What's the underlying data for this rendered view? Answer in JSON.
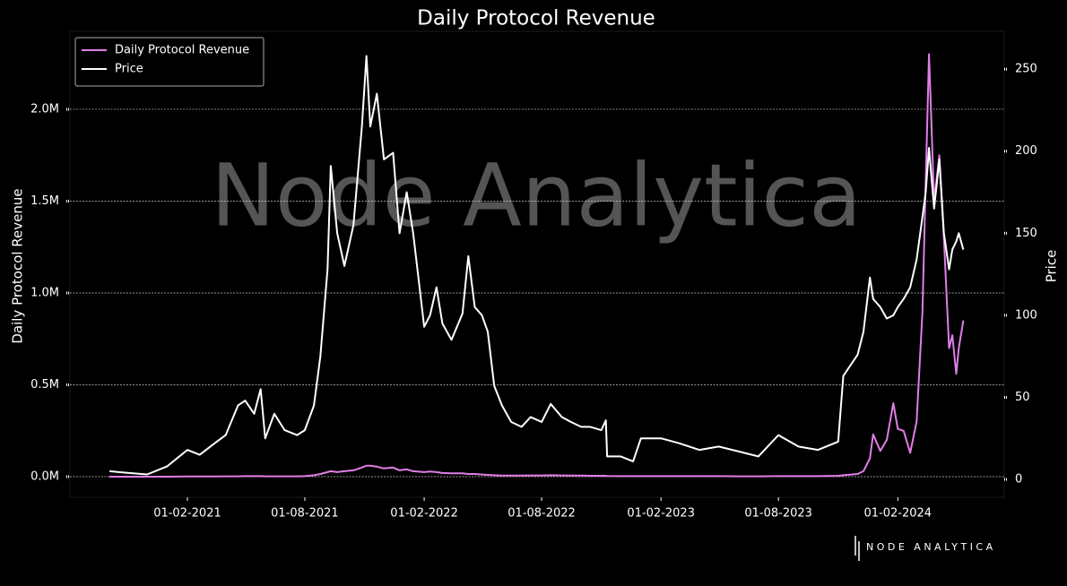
{
  "chart_data": {
    "type": "line",
    "title": "Daily Protocol Revenue",
    "ylabel": "Daily Protocol Revenue",
    "y2label": "Price",
    "watermark": "Node Analytica",
    "brand": "NODE ANALYTICA",
    "legend": "upper left",
    "grid": true,
    "xlim": [
      "2020-08-04",
      "2024-07-14"
    ],
    "xticks": [
      {
        "value": "2021-02-01",
        "label": "01-02-2021"
      },
      {
        "value": "2021-08-01",
        "label": "01-08-2021"
      },
      {
        "value": "2022-02-01",
        "label": "01-02-2022"
      },
      {
        "value": "2022-08-01",
        "label": "01-08-2022"
      },
      {
        "value": "2023-02-01",
        "label": "01-02-2023"
      },
      {
        "value": "2023-08-01",
        "label": "01-08-2023"
      },
      {
        "value": "2024-02-01",
        "label": "01-02-2024"
      }
    ],
    "ylim": [
      -112000,
      2424000
    ],
    "yticks": [
      {
        "value": 0,
        "label": "0.0M"
      },
      {
        "value": 500000,
        "label": "0.5M"
      },
      {
        "value": 1000000,
        "label": "1.0M"
      },
      {
        "value": 1500000,
        "label": "1.5M"
      },
      {
        "value": 2000000,
        "label": "2.0M"
      }
    ],
    "y2lim": [
      -10.9,
      273
    ],
    "y2ticks": [
      0,
      50,
      100,
      150,
      200,
      250
    ],
    "x": [
      "2020-10-04",
      "2020-11-01",
      "2020-12-01",
      "2021-01-01",
      "2021-02-01",
      "2021-02-20",
      "2021-03-15",
      "2021-04-01",
      "2021-04-20",
      "2021-05-01",
      "2021-05-15",
      "2021-05-25",
      "2021-06-01",
      "2021-06-15",
      "2021-07-01",
      "2021-07-20",
      "2021-08-01",
      "2021-08-15",
      "2021-08-25",
      "2021-09-05",
      "2021-09-10",
      "2021-09-20",
      "2021-10-01",
      "2021-10-15",
      "2021-10-28",
      "2021-11-04",
      "2021-11-10",
      "2021-11-20",
      "2021-12-01",
      "2021-12-15",
      "2021-12-25",
      "2022-01-05",
      "2022-01-15",
      "2022-02-01",
      "2022-02-10",
      "2022-02-20",
      "2022-03-01",
      "2022-03-15",
      "2022-04-01",
      "2022-04-10",
      "2022-04-20",
      "2022-05-01",
      "2022-05-10",
      "2022-05-20",
      "2022-06-01",
      "2022-06-15",
      "2022-07-01",
      "2022-07-15",
      "2022-08-01",
      "2022-08-15",
      "2022-09-01",
      "2022-09-15",
      "2022-10-01",
      "2022-10-15",
      "2022-11-01",
      "2022-11-08",
      "2022-11-10",
      "2022-12-01",
      "2022-12-20",
      "2023-01-01",
      "2023-02-01",
      "2023-03-01",
      "2023-04-01",
      "2023-05-01",
      "2023-06-01",
      "2023-07-01",
      "2023-08-01",
      "2023-09-01",
      "2023-10-01",
      "2023-11-01",
      "2023-11-09",
      "2023-12-01",
      "2023-12-10",
      "2023-12-20",
      "2023-12-25",
      "2024-01-05",
      "2024-01-15",
      "2024-01-25",
      "2024-02-01",
      "2024-02-10",
      "2024-02-20",
      "2024-03-01",
      "2024-03-10",
      "2024-03-15",
      "2024-03-20",
      "2024-03-28",
      "2024-04-05",
      "2024-04-12",
      "2024-04-20",
      "2024-04-25",
      "2024-05-01",
      "2024-05-05",
      "2024-05-12"
    ],
    "series": [
      {
        "name": "Daily Protocol Revenue",
        "color": "#e07ee8",
        "axis": "y",
        "values": [
          0,
          0,
          0,
          0,
          1000,
          1000,
          1000,
          2000,
          2000,
          3000,
          3000,
          3000,
          2000,
          2000,
          2000,
          2000,
          3000,
          8000,
          15000,
          25000,
          30000,
          25000,
          30000,
          35000,
          50000,
          60000,
          60000,
          55000,
          45000,
          50000,
          35000,
          40000,
          30000,
          25000,
          28000,
          25000,
          20000,
          18000,
          18000,
          15000,
          15000,
          12000,
          10000,
          8000,
          6000,
          6000,
          6000,
          7000,
          7000,
          8000,
          7000,
          6000,
          6000,
          5000,
          5000,
          5000,
          4000,
          3000,
          3000,
          3000,
          3000,
          3000,
          3000,
          3000,
          2000,
          2000,
          3000,
          3000,
          3000,
          5000,
          8000,
          15000,
          30000,
          100000,
          230000,
          140000,
          200000,
          400000,
          260000,
          250000,
          130000,
          300000,
          900000,
          1600000,
          2300000,
          1500000,
          1750000,
          1300000,
          700000,
          770000,
          560000,
          700000,
          850000
        ]
      },
      {
        "name": "Price",
        "color": "#ffffff",
        "axis": "y2",
        "values": [
          5,
          4,
          3,
          8,
          18,
          15,
          22,
          27,
          45,
          48,
          40,
          55,
          25,
          40,
          30,
          27,
          30,
          45,
          75,
          128,
          191,
          150,
          130,
          155,
          215,
          258,
          215,
          235,
          195,
          199,
          150,
          175,
          150,
          93,
          100,
          117,
          95,
          85,
          101,
          136,
          105,
          100,
          90,
          57,
          45,
          35,
          32,
          38,
          35,
          46,
          38,
          35,
          32,
          32,
          30,
          36,
          14,
          14,
          11,
          25,
          25,
          22,
          18,
          20,
          17,
          14,
          27,
          20,
          18,
          23,
          63,
          76,
          90,
          123,
          110,
          105,
          98,
          100,
          105,
          110,
          117,
          134,
          160,
          175,
          202,
          165,
          195,
          150,
          128,
          140,
          145,
          150,
          140
        ]
      }
    ]
  }
}
